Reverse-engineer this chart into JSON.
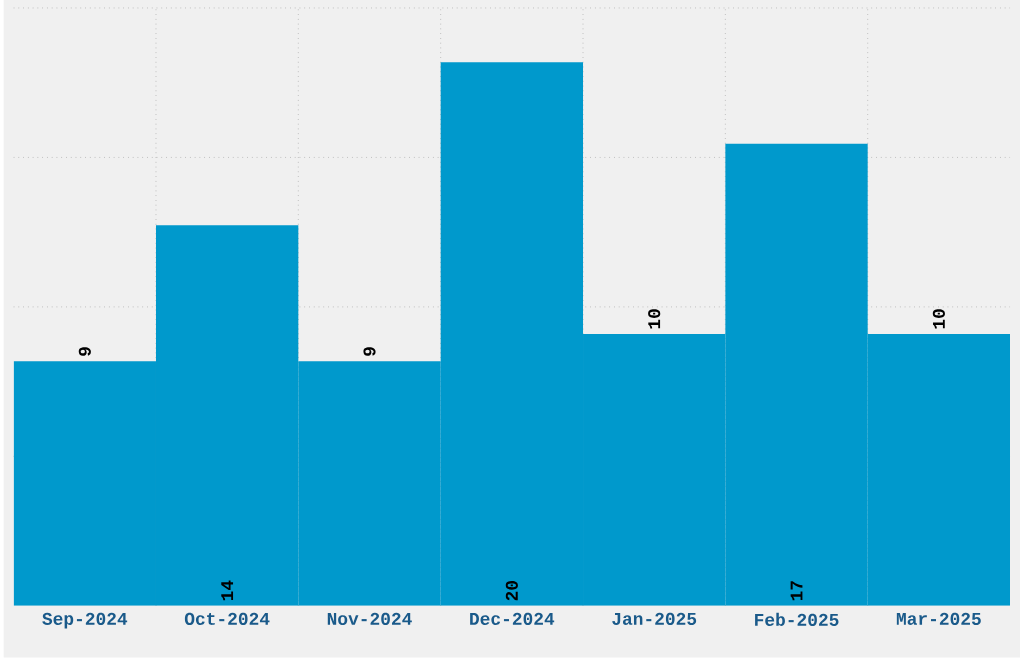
{
  "chart_data": {
    "type": "bar",
    "categories": [
      "Sep-2024",
      "Oct-2024",
      "Nov-2024",
      "Dec-2024",
      "Jan-2025",
      "Feb-2025",
      "Mar-2025"
    ],
    "values": [
      9,
      14,
      9,
      20,
      10,
      17,
      10
    ],
    "color": "#0099cc",
    "relative": false,
    "ylim": [
      0,
      22
    ],
    "yticks": [
      {
        "value": 5.5,
        "label": null
      },
      {
        "value": 11,
        "label": null
      },
      {
        "value": 16.5,
        "label": null
      },
      {
        "value": 22,
        "label": null
      }
    ],
    "tick_labels": "x",
    "grid": true,
    "data_labels": true
  }
}
